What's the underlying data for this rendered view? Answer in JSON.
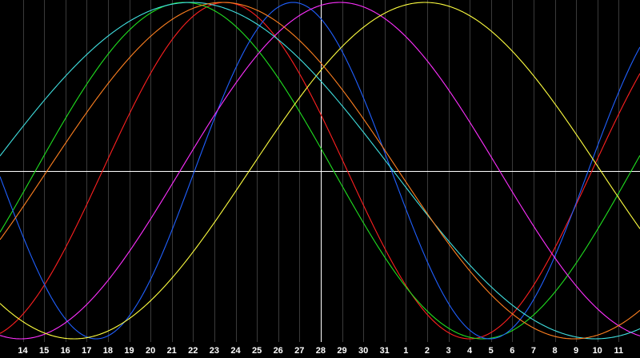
{
  "chart_data": {
    "type": "line",
    "title": "",
    "xlabel": "",
    "ylabel": "",
    "background_color": "#000000",
    "grid": true,
    "grid_color": "#3a3a3a",
    "crosshair_color": "#ffffff",
    "crosshair_day_index": 14,
    "crosshair_value": 0,
    "ylim": [
      -1,
      1
    ],
    "x_ticks": [
      "14",
      "15",
      "16",
      "17",
      "18",
      "19",
      "20",
      "21",
      "22",
      "23",
      "24",
      "25",
      "26",
      "27",
      "28",
      "29",
      "30",
      "31",
      "1",
      "2",
      "3",
      "4",
      "5",
      "6",
      "7",
      "8",
      "9",
      "10",
      "11"
    ],
    "series": [
      {
        "color": "#ff2020",
        "period_days": 23,
        "peak_day_index": 9.5
      },
      {
        "color": "#20e020",
        "period_days": 28,
        "peak_day_index": 7.6
      },
      {
        "color": "#2060ff",
        "period_days": 18.5,
        "peak_day_index": 12.7
      },
      {
        "color": "#ff30ff",
        "period_days": 30,
        "peak_day_index": 14.9
      },
      {
        "color": "#ffff40",
        "period_days": 33,
        "peak_day_index": 18.9
      },
      {
        "color": "#40e0e0",
        "period_days": 38,
        "peak_day_index": 7.9
      },
      {
        "color": "#ff8020",
        "period_days": 33,
        "peak_day_index": 9.4
      }
    ]
  }
}
